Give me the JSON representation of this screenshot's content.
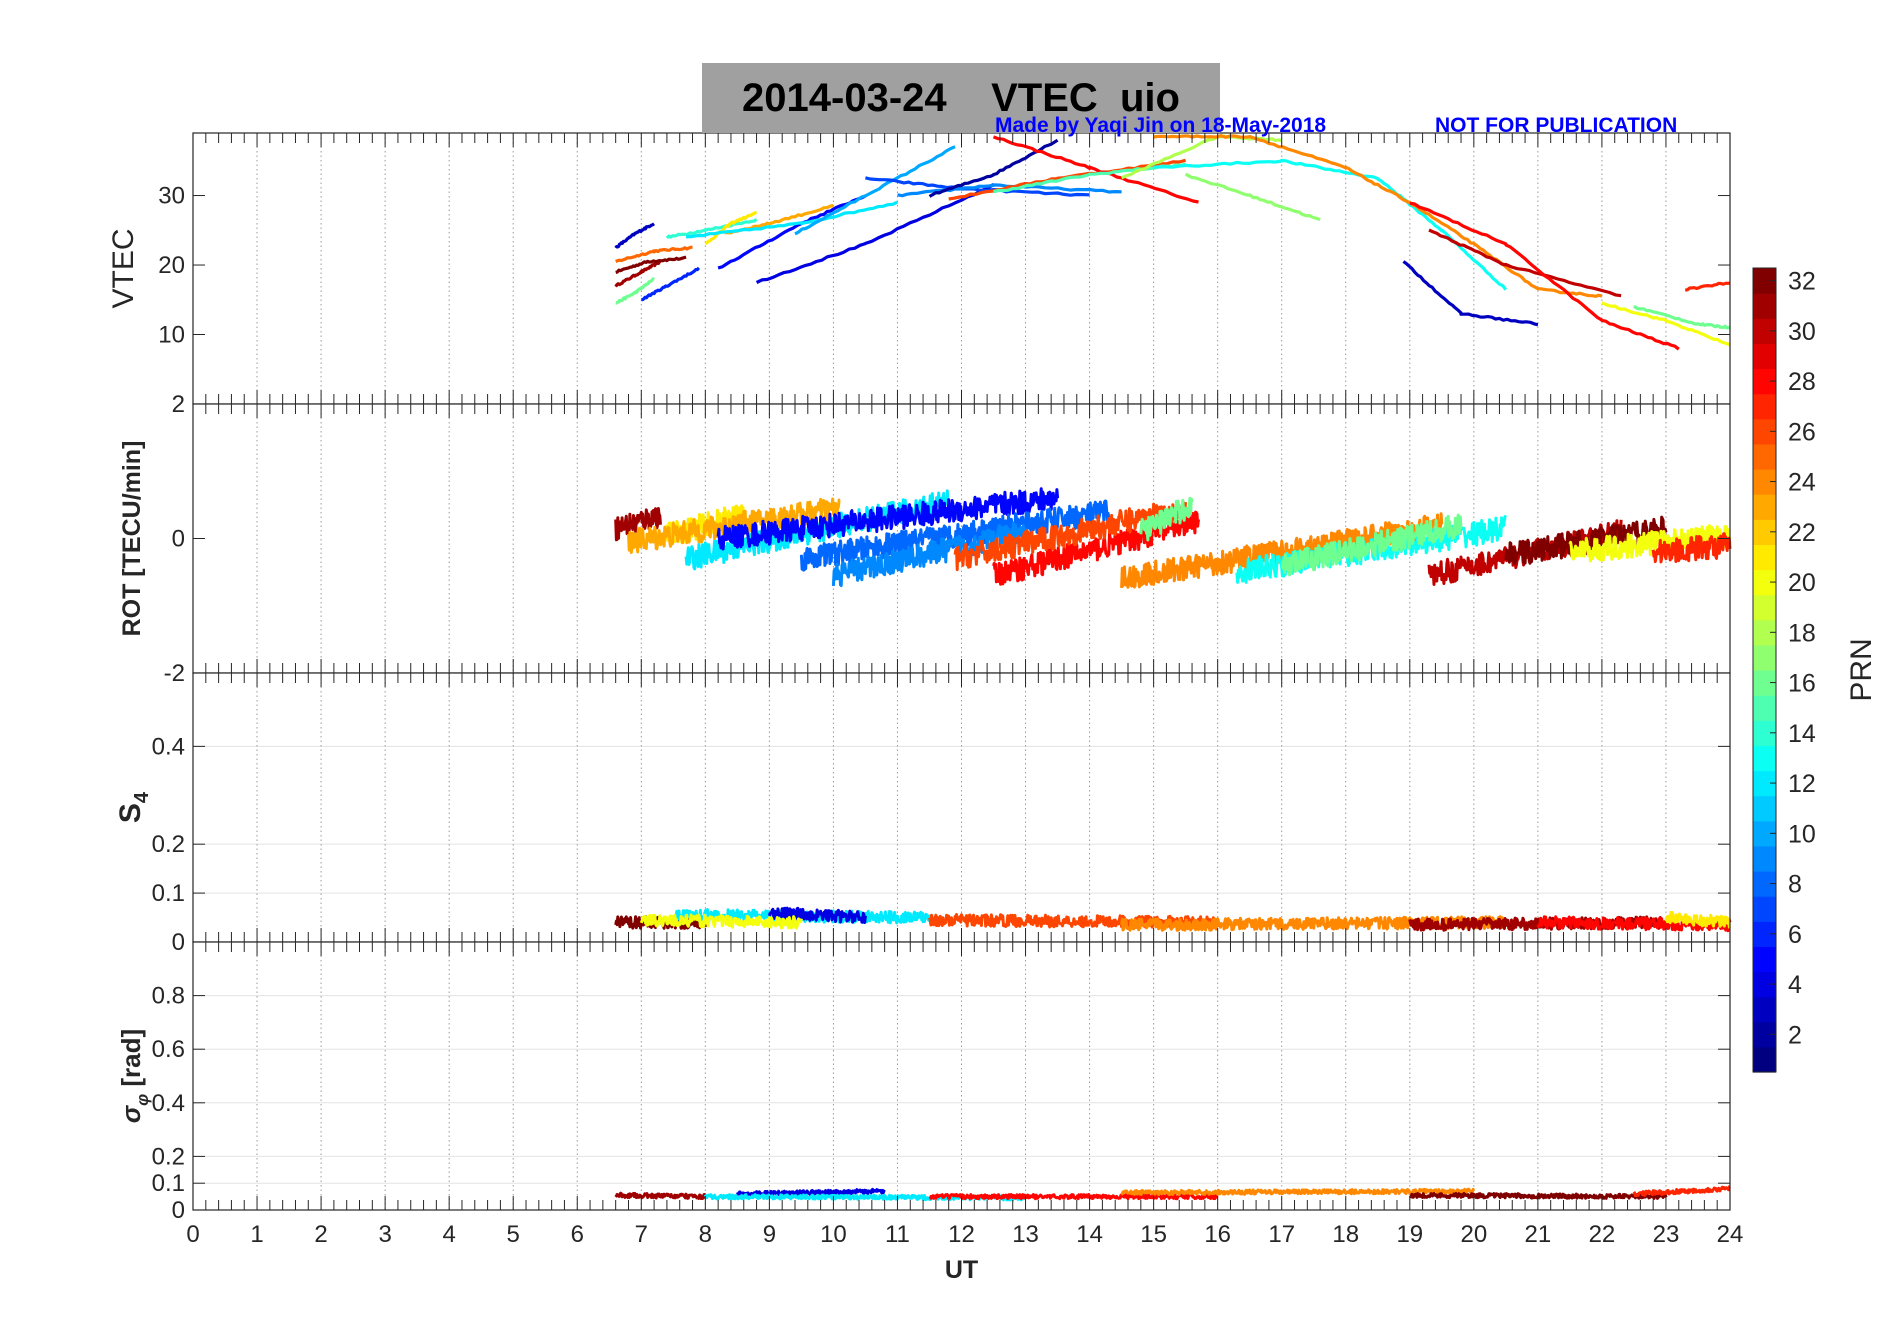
{
  "figure": {
    "title_date": "2014-03-24",
    "title_label": "VTEC",
    "title_station": "uio",
    "credit_left": "Made by Yaqi Jin on 18-May-2018",
    "credit_right": "NOT FOR PUBLICATION"
  },
  "chart_data": [
    {
      "type": "line",
      "panel": "vtec",
      "ylabel": "VTEC",
      "xlim": [
        0,
        24
      ],
      "ylim": [
        0,
        39
      ],
      "yticks": [
        10,
        20,
        30
      ],
      "grid": "vertical dotted at each hour",
      "series_by_prn": true,
      "series": [
        {
          "prn": 31,
          "x": [
            6.6,
            7.0,
            7.3
          ],
          "y": [
            17.0,
            19.0,
            20.5
          ]
        },
        {
          "prn": 32,
          "x": [
            6.6,
            7.1,
            7.7
          ],
          "y": [
            19.0,
            20.5,
            21.0
          ]
        },
        {
          "prn": 25,
          "x": [
            6.6,
            7.2,
            7.8
          ],
          "y": [
            20.5,
            22.0,
            22.5
          ]
        },
        {
          "prn": 3,
          "x": [
            6.6,
            6.9,
            7.2
          ],
          "y": [
            22.5,
            24.5,
            26.0
          ]
        },
        {
          "prn": 16,
          "x": [
            6.6,
            6.9,
            7.2
          ],
          "y": [
            14.5,
            16.0,
            18.0
          ]
        },
        {
          "prn": 6,
          "x": [
            7.0,
            7.4,
            7.9
          ],
          "y": [
            15.0,
            17.0,
            19.5
          ]
        },
        {
          "prn": 14,
          "x": [
            7.4,
            8.0,
            8.8
          ],
          "y": [
            24.0,
            25.0,
            26.5
          ]
        },
        {
          "prn": 21,
          "x": [
            8.0,
            8.4,
            8.8
          ],
          "y": [
            23.0,
            26.0,
            27.5
          ]
        },
        {
          "prn": 5,
          "x": [
            8.2,
            9.5,
            10.5
          ],
          "y": [
            19.5,
            26.0,
            30.0
          ]
        },
        {
          "prn": 23,
          "x": [
            8.3,
            9.0,
            10.0
          ],
          "y": [
            24.5,
            26.0,
            28.5
          ]
        },
        {
          "prn": 12,
          "x": [
            7.7,
            9.5,
            11.0
          ],
          "y": [
            24.0,
            26.0,
            29.0
          ]
        },
        {
          "prn": 4,
          "x": [
            8.8,
            10.5,
            12.5
          ],
          "y": [
            17.5,
            23.0,
            31.5
          ]
        },
        {
          "prn": 10,
          "x": [
            9.4,
            10.5,
            11.9
          ],
          "y": [
            24.5,
            30.0,
            37.0
          ]
        },
        {
          "prn": 7,
          "x": [
            10.5,
            12.0,
            14.0
          ],
          "y": [
            32.5,
            31.0,
            30.0
          ]
        },
        {
          "prn": 9,
          "x": [
            11.0,
            12.5,
            14.5
          ],
          "y": [
            30.0,
            31.5,
            30.5
          ]
        },
        {
          "prn": 2,
          "x": [
            11.5,
            12.5,
            13.5
          ],
          "y": [
            30.0,
            33.0,
            38.0
          ]
        },
        {
          "prn": 26,
          "x": [
            11.8,
            13.5,
            15.5
          ],
          "y": [
            29.5,
            32.5,
            35.0
          ]
        },
        {
          "prn": 28,
          "x": [
            12.5,
            14.0,
            15.7
          ],
          "y": [
            38.5,
            34.0,
            29.0
          ]
        },
        {
          "prn": 15,
          "x": [
            12.5,
            14.0,
            15.5
          ],
          "y": [
            30.5,
            33.0,
            34.5
          ]
        },
        {
          "prn": 18,
          "x": [
            14.5,
            16.0,
            17.0
          ],
          "y": [
            32.5,
            38.5,
            38.0
          ]
        },
        {
          "prn": 17,
          "x": [
            15.5,
            16.5,
            17.6
          ],
          "y": [
            33.0,
            30.0,
            26.5
          ]
        },
        {
          "prn": 13,
          "x": [
            15.0,
            17.0,
            18.5,
            19.5,
            20.5
          ],
          "y": [
            34.0,
            35.0,
            32.5,
            25.0,
            16.5
          ]
        },
        {
          "prn": 24,
          "x": [
            15.0,
            16.5,
            18.0,
            19.0,
            20.0,
            21.0,
            22.0
          ],
          "y": [
            38.5,
            38.5,
            34.0,
            29.0,
            23.0,
            16.5,
            15.5
          ]
        },
        {
          "prn": 3,
          "x": [
            18.9,
            19.8,
            21.0
          ],
          "y": [
            20.5,
            13.0,
            11.5
          ]
        },
        {
          "prn": 30,
          "x": [
            19.3,
            20.5,
            22.3
          ],
          "y": [
            25.0,
            20.0,
            15.5
          ]
        },
        {
          "prn": 28,
          "x": [
            19.0,
            20.5,
            22.0,
            23.2
          ],
          "y": [
            29.0,
            23.0,
            12.0,
            8.0
          ]
        },
        {
          "prn": 20,
          "x": [
            22.0,
            23.0,
            24.0
          ],
          "y": [
            14.5,
            12.0,
            8.5
          ]
        },
        {
          "prn": 16,
          "x": [
            22.5,
            23.5,
            24.0
          ],
          "y": [
            14.0,
            11.5,
            11.0
          ]
        },
        {
          "prn": 27,
          "x": [
            23.3,
            24.0
          ],
          "y": [
            16.5,
            17.5
          ]
        }
      ]
    },
    {
      "type": "line",
      "panel": "rot",
      "ylabel": "ROT [TECU/min]",
      "xlim": [
        0,
        24
      ],
      "ylim": [
        -2,
        2
      ],
      "yticks": [
        -2,
        0,
        2
      ],
      "grid": "vertical dotted at each hour",
      "series_by_prn": true,
      "noise": 0.18,
      "series": [
        {
          "prn": 31,
          "x": [
            6.6,
            7.3
          ],
          "y": [
            0.15,
            0.35
          ]
        },
        {
          "prn": 21,
          "x": [
            7.4,
            8.6
          ],
          "y": [
            0.05,
            0.35
          ]
        },
        {
          "prn": 12,
          "x": [
            7.7,
            11.8
          ],
          "y": [
            -0.3,
            0.55
          ]
        },
        {
          "prn": 23,
          "x": [
            6.8,
            10.1
          ],
          "y": [
            -0.05,
            0.45
          ]
        },
        {
          "prn": 5,
          "x": [
            8.2,
            13.5
          ],
          "y": [
            0.0,
            0.6
          ]
        },
        {
          "prn": 8,
          "x": [
            9.5,
            14.3
          ],
          "y": [
            -0.3,
            0.4
          ]
        },
        {
          "prn": 9,
          "x": [
            10.0,
            13.0
          ],
          "y": [
            -0.55,
            0.1
          ]
        },
        {
          "prn": 28,
          "x": [
            12.5,
            15.7
          ],
          "y": [
            -0.55,
            0.25
          ]
        },
        {
          "prn": 26,
          "x": [
            11.9,
            15.5
          ],
          "y": [
            -0.3,
            0.45
          ]
        },
        {
          "prn": 16,
          "x": [
            14.8,
            15.6
          ],
          "y": [
            0.1,
            0.5
          ]
        },
        {
          "prn": 24,
          "x": [
            14.5,
            19.5
          ],
          "y": [
            -0.6,
            0.2
          ]
        },
        {
          "prn": 13,
          "x": [
            16.3,
            20.5
          ],
          "y": [
            -0.5,
            0.15
          ]
        },
        {
          "prn": 16,
          "x": [
            17.0,
            19.8
          ],
          "y": [
            -0.4,
            0.2
          ]
        },
        {
          "prn": 30,
          "x": [
            19.3,
            22.3
          ],
          "y": [
            -0.55,
            0.1
          ]
        },
        {
          "prn": 32,
          "x": [
            20.5,
            23.0
          ],
          "y": [
            -0.25,
            0.15
          ]
        },
        {
          "prn": 20,
          "x": [
            21.5,
            24.0
          ],
          "y": [
            -0.2,
            0.05
          ]
        },
        {
          "prn": 27,
          "x": [
            22.8,
            24.0
          ],
          "y": [
            -0.2,
            -0.1
          ]
        }
      ]
    },
    {
      "type": "line",
      "panel": "s4",
      "ylabel": "S4",
      "xlim": [
        0,
        24
      ],
      "ylim": [
        0,
        0.55
      ],
      "yticks": [
        0,
        0.1,
        0.2,
        0.4
      ],
      "grid": "vertical dotted at each hour, horizontal gridlines",
      "series_by_prn": true,
      "noise": 0.012,
      "series": [
        {
          "prn": 32,
          "x": [
            6.6,
            8.0
          ],
          "y": [
            0.04,
            0.04
          ]
        },
        {
          "prn": 12,
          "x": [
            7.5,
            11.5
          ],
          "y": [
            0.055,
            0.05
          ]
        },
        {
          "prn": 4,
          "x": [
            9.0,
            10.5
          ],
          "y": [
            0.06,
            0.05
          ]
        },
        {
          "prn": 20,
          "x": [
            7.0,
            9.5
          ],
          "y": [
            0.045,
            0.04
          ]
        },
        {
          "prn": 26,
          "x": [
            11.5,
            16.0
          ],
          "y": [
            0.045,
            0.04
          ]
        },
        {
          "prn": 24,
          "x": [
            14.5,
            20.5
          ],
          "y": [
            0.035,
            0.04
          ]
        },
        {
          "prn": 31,
          "x": [
            19.0,
            23.0
          ],
          "y": [
            0.035,
            0.04
          ]
        },
        {
          "prn": 28,
          "x": [
            21.0,
            24.0
          ],
          "y": [
            0.04,
            0.035
          ]
        },
        {
          "prn": 21,
          "x": [
            23.0,
            24.0
          ],
          "y": [
            0.05,
            0.04
          ]
        }
      ]
    },
    {
      "type": "line",
      "panel": "sigma_phi",
      "ylabel": "σφ [rad]",
      "xlim": [
        0,
        24
      ],
      "ylim": [
        0,
        1
      ],
      "yticks": [
        0,
        0.1,
        0.2,
        0.4,
        0.6,
        0.8
      ],
      "xticks": [
        0,
        1,
        2,
        3,
        4,
        5,
        6,
        7,
        8,
        9,
        10,
        11,
        12,
        13,
        14,
        15,
        16,
        17,
        18,
        19,
        20,
        21,
        22,
        23,
        24
      ],
      "xlabel": "UT",
      "grid": "vertical dotted at each hour, horizontal gridlines",
      "series_by_prn": true,
      "noise": 0.008,
      "series": [
        {
          "prn": 31,
          "x": [
            6.6,
            8.0
          ],
          "y": [
            0.055,
            0.05
          ]
        },
        {
          "prn": 4,
          "x": [
            8.5,
            10.8
          ],
          "y": [
            0.06,
            0.07
          ]
        },
        {
          "prn": 12,
          "x": [
            8.0,
            13.0
          ],
          "y": [
            0.05,
            0.045
          ]
        },
        {
          "prn": 28,
          "x": [
            11.5,
            16.0
          ],
          "y": [
            0.05,
            0.05
          ]
        },
        {
          "prn": 24,
          "x": [
            14.5,
            20.0
          ],
          "y": [
            0.065,
            0.07
          ]
        },
        {
          "prn": 32,
          "x": [
            19.0,
            23.0
          ],
          "y": [
            0.055,
            0.05
          ]
        },
        {
          "prn": 27,
          "x": [
            22.5,
            24.0
          ],
          "y": [
            0.06,
            0.08
          ]
        }
      ]
    }
  ],
  "colorbar": {
    "label": "PRN",
    "range": [
      1,
      32
    ],
    "ticks": [
      2,
      4,
      6,
      8,
      10,
      12,
      14,
      16,
      18,
      20,
      22,
      24,
      26,
      28,
      30,
      32
    ]
  }
}
